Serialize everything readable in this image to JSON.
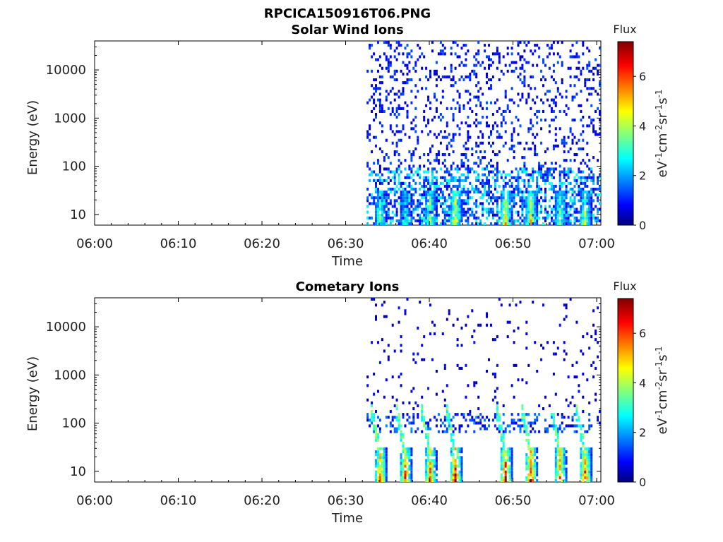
{
  "figure": {
    "title": "RPCICA150916T06.PNG"
  },
  "panels": [
    {
      "title": "Solar Wind Ions",
      "xlabel": "Time",
      "ylabel": "Energy (eV)",
      "colorbar_title": "Flux",
      "colorbar_label": "eV-1cm-2sr-1s-1",
      "colorbar_ticks": [
        "0",
        "2",
        "4",
        "6"
      ]
    },
    {
      "title": "Cometary Ions",
      "xlabel": "Time",
      "ylabel": "Energy (eV)",
      "colorbar_title": "Flux",
      "colorbar_label": "eV-1cm-2sr-1s-1",
      "colorbar_ticks": [
        "0",
        "2",
        "4",
        "6"
      ]
    }
  ],
  "chart_data": [
    {
      "type": "heatmap",
      "title": "Solar Wind Ions",
      "xlabel": "Time",
      "ylabel": "Energy (eV)",
      "x_ticks": [
        "06:00",
        "06:10",
        "06:20",
        "06:30",
        "06:40",
        "06:50",
        "07:00"
      ],
      "y_ticks": [
        "10",
        "100",
        "1000",
        "10000"
      ],
      "y_scale": "log",
      "ylim": [
        6,
        40000
      ],
      "xlim_minutes": [
        0,
        60.5
      ],
      "colorbar": {
        "title": "Flux",
        "range": [
          0,
          7.4
        ],
        "ticks": [
          0,
          2,
          4,
          6
        ],
        "colormap": "jet"
      },
      "data_start_minutes": 32.5,
      "description": "sparse low-flux counts from 06:32.5 to 07:00 across all energies; enhanced flux bands below ~30 eV near 06:34, 06:40, 06:43, 06:49, 06:52, 06:58"
    },
    {
      "type": "heatmap",
      "title": "Cometary Ions",
      "xlabel": "Time",
      "ylabel": "Energy (eV)",
      "x_ticks": [
        "06:00",
        "06:10",
        "06:20",
        "06:30",
        "06:40",
        "06:50",
        "07:00"
      ],
      "y_ticks": [
        "10",
        "100",
        "1000",
        "10000"
      ],
      "y_scale": "log",
      "ylim": [
        6,
        40000
      ],
      "xlim_minutes": [
        0,
        60.5
      ],
      "colorbar": {
        "title": "Flux",
        "range": [
          0,
          7.4
        ],
        "ticks": [
          0,
          2,
          4,
          6
        ],
        "colormap": "jet"
      },
      "data_start_minutes": 32.5,
      "description": "high flux bursts (up to ~7) below ~30 eV near 06:34, 06:37, 06:40, 06:43, 06:49, 06:52, 06:55, 06:58 with dispersion tails to ~200 eV; sparse counts up to 10000 eV"
    }
  ]
}
